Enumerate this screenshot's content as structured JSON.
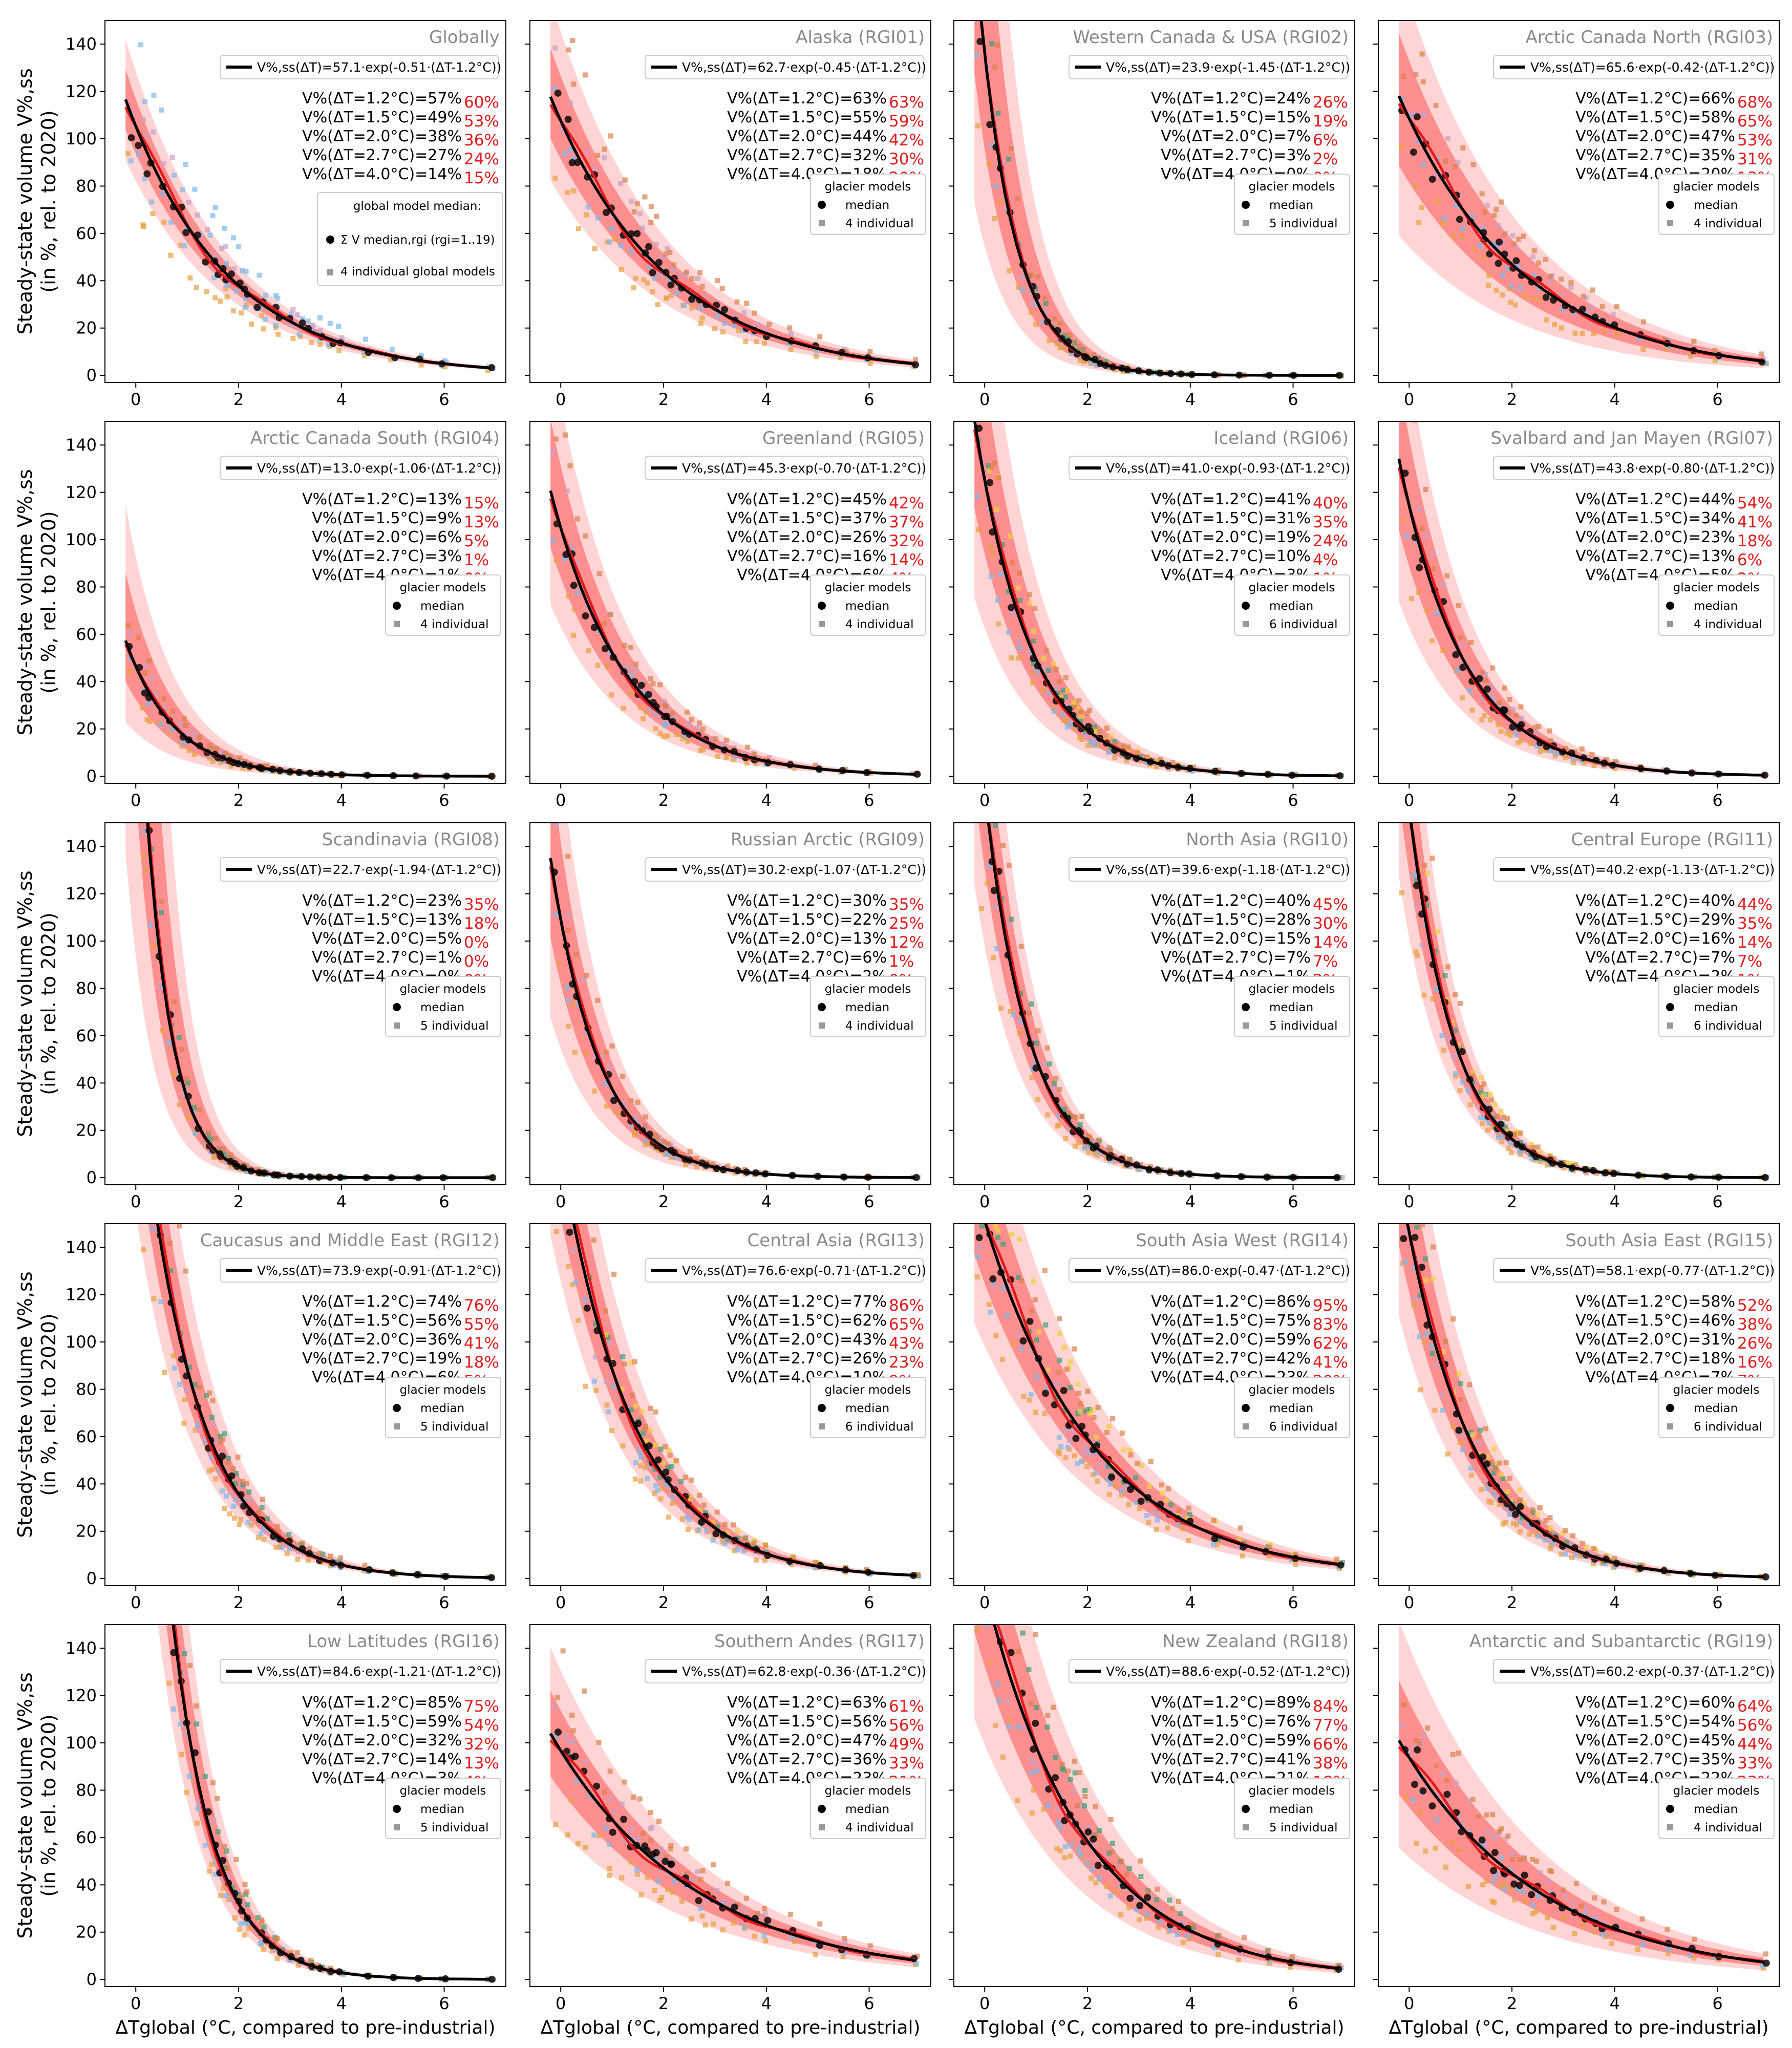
{
  "axes": {
    "ylabel_line1": "Steady-state volume V%,ss",
    "ylabel_line2": "(in %, rel. to 2020)",
    "xlabel": "ΔTglobal (°C, compared to pre-industrial)",
    "xticks": [
      "0",
      "2",
      "4",
      "6"
    ],
    "yticks": [
      "0",
      "20",
      "40",
      "60",
      "80",
      "100",
      "120",
      "140"
    ],
    "xlim": [
      -0.6,
      7.2
    ],
    "ylim": [
      -3,
      150
    ]
  },
  "colors": {
    "fit": "#000000",
    "median_curve": "#e31a1c",
    "band_outer": "#ffd4d4",
    "band_inner": "#ff8f8f",
    "median_dots": "#000000",
    "title": "#8a8a8a",
    "model_colors": [
      "#e8a040",
      "#7fb8e8",
      "#c8a0c8",
      "#3aa07a",
      "#f0d040",
      "#d9804a"
    ]
  },
  "legend": {
    "global_title": "global model median:",
    "global_sum_label": "Σ V median,rgi (rgi=1..19)",
    "global_individual": "4 individual global models",
    "title": "glacier models",
    "median": "median"
  },
  "chart_data": [
    {
      "type": "scatter",
      "title": "Globally",
      "a": 57.1,
      "b": 0.51,
      "equation": "V%,ss(ΔT)=57.1·exp(-0.51·(ΔT-1.2°C))",
      "n_models": 4,
      "individual_label": "4 individual global models",
      "vals": [
        57,
        49,
        38,
        27,
        14
      ],
      "reds": [
        "60%",
        "53%",
        "36%",
        "24%",
        "15%"
      ],
      "spread_lo": 0.78,
      "spread_hi": 1.22,
      "model_colors": [
        "#e8a040",
        "#7fb8e8",
        "#c8a0c8",
        "#7fb8e8"
      ]
    },
    {
      "type": "scatter",
      "title": "Alaska (RGI01)",
      "a": 62.7,
      "b": 0.45,
      "equation": "V%,ss(ΔT)=62.7·exp(-0.45·(ΔT-1.2°C))",
      "n_models": 4,
      "individual_label": "4 individual",
      "vals": [
        63,
        55,
        44,
        32,
        18
      ],
      "reds": [
        "63%",
        "59%",
        "42%",
        "30%",
        "20%"
      ],
      "spread_lo": 0.7,
      "spread_hi": 1.35,
      "model_colors": [
        "#e8a040",
        "#7fb8e8",
        "#c8a0c8",
        "#d9804a"
      ]
    },
    {
      "type": "scatter",
      "title": "Western Canada & USA (RGI02)",
      "a": 23.9,
      "b": 1.45,
      "equation": "V%,ss(ΔT)=23.9·exp(-1.45·(ΔT-1.2°C))",
      "n_models": 5,
      "individual_label": "5 individual",
      "vals": [
        24,
        15,
        7,
        3,
        0
      ],
      "reds": [
        "26%",
        "19%",
        "6%",
        "2%",
        "0%"
      ],
      "spread_lo": 0.4,
      "spread_hi": 2.2,
      "model_colors": [
        "#e8a040",
        "#7fb8e8",
        "#c8a0c8",
        "#3aa07a",
        "#d9804a"
      ]
    },
    {
      "type": "scatter",
      "title": "Arctic Canada North (RGI03)",
      "a": 65.6,
      "b": 0.42,
      "equation": "V%,ss(ΔT)=65.6·exp(-0.42·(ΔT-1.2°C))",
      "n_models": 4,
      "individual_label": "4 individual",
      "vals": [
        66,
        58,
        47,
        35,
        20
      ],
      "reds": [
        "68%",
        "65%",
        "53%",
        "31%",
        "13%"
      ],
      "spread_lo": 0.5,
      "spread_hi": 1.45,
      "model_colors": [
        "#e8a040",
        "#7fb8e8",
        "#c8a0c8",
        "#d9804a"
      ]
    },
    {
      "type": "scatter",
      "title": "Arctic Canada South (RGI04)",
      "a": 13.0,
      "b": 1.06,
      "equation": "V%,ss(ΔT)=13.0·exp(-1.06·(ΔT-1.2°C))",
      "n_models": 4,
      "individual_label": "4 individual",
      "vals": [
        13,
        9,
        6,
        3,
        1
      ],
      "reds": [
        "15%",
        "13%",
        "5%",
        "1%",
        "0%"
      ],
      "spread_lo": 0.4,
      "spread_hi": 2.0,
      "model_colors": [
        "#e8a040",
        "#7fb8e8",
        "#c8a0c8",
        "#d9804a"
      ]
    },
    {
      "type": "scatter",
      "title": "Greenland (RGI05)",
      "a": 45.3,
      "b": 0.7,
      "equation": "V%,ss(ΔT)=45.3·exp(-0.70·(ΔT-1.2°C))",
      "n_models": 4,
      "individual_label": "4 individual",
      "vals": [
        45,
        37,
        26,
        16,
        6
      ],
      "reds": [
        "42%",
        "37%",
        "32%",
        "14%",
        "4%"
      ],
      "spread_lo": 0.6,
      "spread_hi": 1.5,
      "model_colors": [
        "#e8a040",
        "#7fb8e8",
        "#c8a0c8",
        "#d9804a"
      ]
    },
    {
      "type": "scatter",
      "title": "Iceland (RGI06)",
      "a": 41.0,
      "b": 0.93,
      "equation": "V%,ss(ΔT)=41.0·exp(-0.93·(ΔT-1.2°C))",
      "n_models": 6,
      "individual_label": "6 individual",
      "vals": [
        41,
        31,
        19,
        10,
        3
      ],
      "reds": [
        "40%",
        "35%",
        "24%",
        "4%",
        "1%"
      ],
      "spread_lo": 0.5,
      "spread_hi": 1.7,
      "model_colors": [
        "#e8a040",
        "#7fb8e8",
        "#c8a0c8",
        "#3aa07a",
        "#f0d040",
        "#d9804a"
      ]
    },
    {
      "type": "scatter",
      "title": "Svalbard and Jan Mayen (RGI07)",
      "a": 43.8,
      "b": 0.8,
      "equation": "V%,ss(ΔT)=43.8·exp(-0.80·(ΔT-1.2°C))",
      "n_models": 4,
      "individual_label": "4 individual",
      "vals": [
        44,
        34,
        23,
        13,
        5
      ],
      "reds": [
        "54%",
        "41%",
        "18%",
        "6%",
        "2%"
      ],
      "spread_lo": 0.55,
      "spread_hi": 1.5,
      "model_colors": [
        "#e8a040",
        "#7fb8e8",
        "#c8a0c8",
        "#d9804a"
      ]
    },
    {
      "type": "scatter",
      "title": "Scandinavia (RGI08)",
      "a": 22.7,
      "b": 1.94,
      "equation": "V%,ss(ΔT)=22.7·exp(-1.94·(ΔT-1.2°C))",
      "n_models": 5,
      "individual_label": "5 individual",
      "vals": [
        23,
        13,
        5,
        1,
        0
      ],
      "reds": [
        "35%",
        "18%",
        "0%",
        "0%",
        "0%"
      ],
      "spread_lo": 0.4,
      "spread_hi": 2.4,
      "model_colors": [
        "#e8a040",
        "#7fb8e8",
        "#c8a0c8",
        "#3aa07a",
        "#d9804a"
      ]
    },
    {
      "type": "scatter",
      "title": "Russian Arctic (RGI09)",
      "a": 30.2,
      "b": 1.07,
      "equation": "V%,ss(ΔT)=30.2·exp(-1.07·(ΔT-1.2°C))",
      "n_models": 4,
      "individual_label": "4 individual",
      "vals": [
        30,
        22,
        13,
        6,
        2
      ],
      "reds": [
        "35%",
        "25%",
        "12%",
        "1%",
        "0%"
      ],
      "spread_lo": 0.5,
      "spread_hi": 1.6,
      "model_colors": [
        "#e8a040",
        "#7fb8e8",
        "#c8a0c8",
        "#d9804a"
      ]
    },
    {
      "type": "scatter",
      "title": "North Asia (RGI10)",
      "a": 39.6,
      "b": 1.18,
      "equation": "V%,ss(ΔT)=39.6·exp(-1.18·(ΔT-1.2°C))",
      "n_models": 5,
      "individual_label": "5 individual",
      "vals": [
        40,
        28,
        15,
        7,
        1
      ],
      "reds": [
        "45%",
        "30%",
        "14%",
        "7%",
        "2%"
      ],
      "spread_lo": 0.6,
      "spread_hi": 1.5,
      "model_colors": [
        "#e8a040",
        "#7fb8e8",
        "#c8a0c8",
        "#3aa07a",
        "#d9804a"
      ]
    },
    {
      "type": "scatter",
      "title": "Central Europe (RGI11)",
      "a": 40.2,
      "b": 1.13,
      "equation": "V%,ss(ΔT)=40.2·exp(-1.13·(ΔT-1.2°C))",
      "n_models": 6,
      "individual_label": "6 individual",
      "vals": [
        40,
        29,
        16,
        7,
        2
      ],
      "reds": [
        "44%",
        "35%",
        "14%",
        "7%",
        "1%"
      ],
      "spread_lo": 0.65,
      "spread_hi": 1.4,
      "model_colors": [
        "#e8a040",
        "#7fb8e8",
        "#c8a0c8",
        "#3aa07a",
        "#f0d040",
        "#d9804a"
      ]
    },
    {
      "type": "scatter",
      "title": "Caucasus and Middle East (RGI12)",
      "a": 73.9,
      "b": 0.91,
      "equation": "V%,ss(ΔT)=73.9·exp(-0.91·(ΔT-1.2°C))",
      "n_models": 5,
      "individual_label": "5 individual",
      "vals": [
        74,
        56,
        36,
        19,
        6
      ],
      "reds": [
        "76%",
        "55%",
        "41%",
        "18%",
        "5%"
      ],
      "spread_lo": 0.7,
      "spread_hi": 1.45,
      "model_colors": [
        "#e8a040",
        "#7fb8e8",
        "#c8a0c8",
        "#3aa07a",
        "#d9804a"
      ]
    },
    {
      "type": "scatter",
      "title": "Central Asia (RGI13)",
      "a": 76.6,
      "b": 0.71,
      "equation": "V%,ss(ΔT)=76.6·exp(-0.71·(ΔT-1.2°C))",
      "n_models": 6,
      "individual_label": "6 individual",
      "vals": [
        77,
        62,
        43,
        26,
        10
      ],
      "reds": [
        "86%",
        "65%",
        "43%",
        "23%",
        "9%"
      ],
      "spread_lo": 0.7,
      "spread_hi": 1.4,
      "model_colors": [
        "#e8a040",
        "#7fb8e8",
        "#c8a0c8",
        "#3aa07a",
        "#f0d040",
        "#d9804a"
      ]
    },
    {
      "type": "scatter",
      "title": "South Asia West (RGI14)",
      "a": 86.0,
      "b": 0.47,
      "equation": "V%,ss(ΔT)=86.0·exp(-0.47·(ΔT-1.2°C))",
      "n_models": 6,
      "individual_label": "6 individual",
      "vals": [
        86,
        75,
        59,
        42,
        23
      ],
      "reds": [
        "95%",
        "83%",
        "62%",
        "41%",
        "20%"
      ],
      "spread_lo": 0.65,
      "spread_hi": 1.4,
      "model_colors": [
        "#e8a040",
        "#7fb8e8",
        "#c8a0c8",
        "#3aa07a",
        "#f0d040",
        "#d9804a"
      ]
    },
    {
      "type": "scatter",
      "title": "South Asia East (RGI15)",
      "a": 58.1,
      "b": 0.77,
      "equation": "V%,ss(ΔT)=58.1·exp(-0.77·(ΔT-1.2°C))",
      "n_models": 6,
      "individual_label": "6 individual",
      "vals": [
        58,
        46,
        31,
        18,
        7
      ],
      "reds": [
        "52%",
        "38%",
        "26%",
        "16%",
        "7%"
      ],
      "spread_lo": 0.65,
      "spread_hi": 1.45,
      "model_colors": [
        "#e8a040",
        "#7fb8e8",
        "#c8a0c8",
        "#3aa07a",
        "#f0d040",
        "#d9804a"
      ]
    },
    {
      "type": "scatter",
      "title": "Low Latitudes (RGI16)",
      "a": 84.6,
      "b": 1.21,
      "equation": "V%,ss(ΔT)=84.6·exp(-1.21·(ΔT-1.2°C))",
      "n_models": 5,
      "individual_label": "5 individual",
      "vals": [
        85,
        59,
        32,
        14,
        3
      ],
      "reds": [
        "75%",
        "54%",
        "32%",
        "13%",
        "4%"
      ],
      "spread_lo": 0.7,
      "spread_hi": 1.45,
      "model_colors": [
        "#e8a040",
        "#7fb8e8",
        "#c8a0c8",
        "#3aa07a",
        "#d9804a"
      ]
    },
    {
      "type": "scatter",
      "title": "Southern Andes (RGI17)",
      "a": 62.8,
      "b": 0.36,
      "equation": "V%,ss(ΔT)=62.8·exp(-0.36·(ΔT-1.2°C))",
      "n_models": 4,
      "individual_label": "4 individual",
      "vals": [
        63,
        56,
        47,
        36,
        23
      ],
      "reds": [
        "61%",
        "56%",
        "49%",
        "33%",
        "21%"
      ],
      "spread_lo": 0.65,
      "spread_hi": 1.35,
      "model_colors": [
        "#e8a040",
        "#7fb8e8",
        "#c8a0c8",
        "#d9804a"
      ]
    },
    {
      "type": "scatter",
      "title": "New Zealand (RGI18)",
      "a": 88.6,
      "b": 0.52,
      "equation": "V%,ss(ΔT)=88.6·exp(-0.52·(ΔT-1.2°C))",
      "n_models": 5,
      "individual_label": "5 individual",
      "vals": [
        89,
        76,
        59,
        41,
        21
      ],
      "reds": [
        "84%",
        "77%",
        "66%",
        "38%",
        "18%"
      ],
      "spread_lo": 0.6,
      "spread_hi": 1.45,
      "model_colors": [
        "#e8a040",
        "#7fb8e8",
        "#c8a0c8",
        "#3aa07a",
        "#d9804a"
      ]
    },
    {
      "type": "scatter",
      "title": "Antarctic and Subantarctic (RGI19)",
      "a": 60.2,
      "b": 0.37,
      "equation": "V%,ss(ΔT)=60.2·exp(-0.37·(ΔT-1.2°C))",
      "n_models": 4,
      "individual_label": "4 individual",
      "vals": [
        60,
        54,
        45,
        35,
        22
      ],
      "reds": [
        "64%",
        "56%",
        "44%",
        "33%",
        "23%"
      ],
      "spread_lo": 0.55,
      "spread_hi": 1.5,
      "model_colors": [
        "#e8a040",
        "#7fb8e8",
        "#c8a0c8",
        "#d9804a"
      ]
    }
  ]
}
